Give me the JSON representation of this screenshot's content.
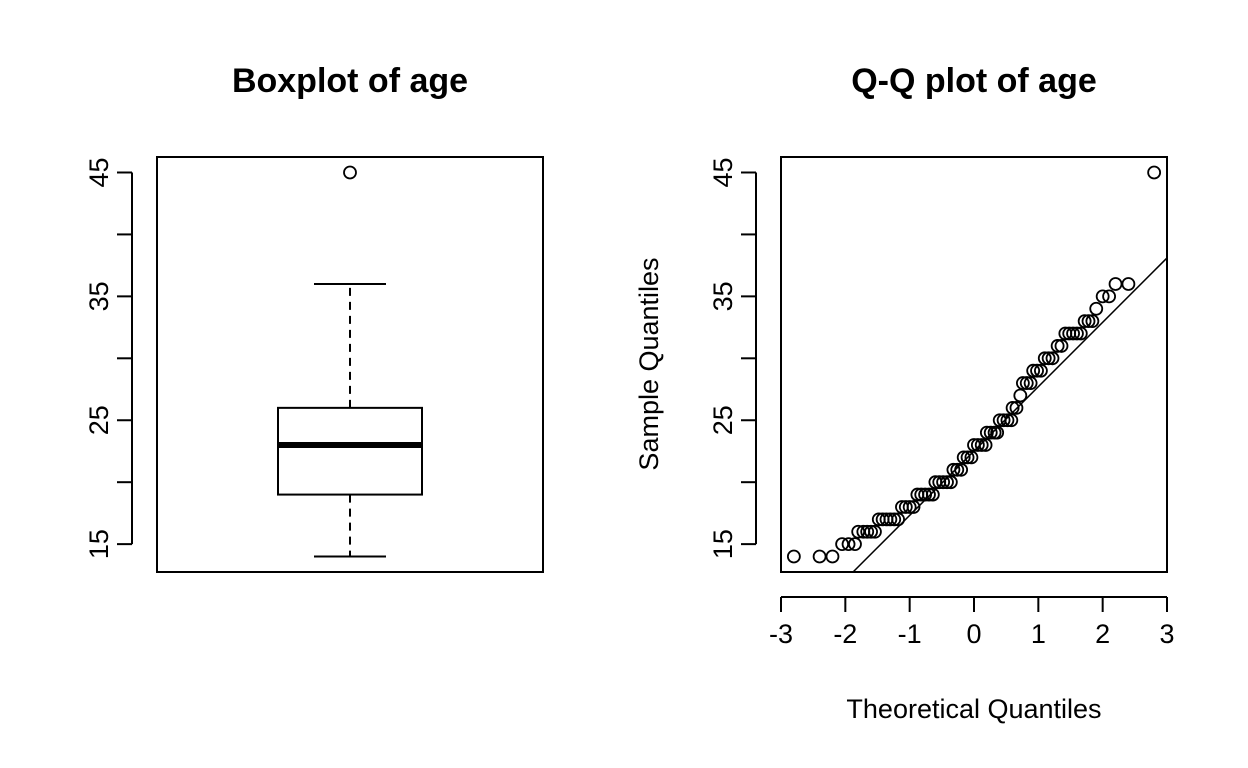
{
  "chart_data": [
    {
      "type": "box",
      "title": "Boxplot of age",
      "xlabel": "",
      "ylabel": "",
      "ylim": [
        12.75,
        46.25
      ],
      "yticks": [
        15,
        20,
        25,
        30,
        35,
        40,
        45
      ],
      "ytick_labels": [
        "15",
        "",
        "25",
        "",
        "35",
        "",
        "45"
      ],
      "box": {
        "whisker_low": 14,
        "q1": 19,
        "median": 23,
        "q3": 26,
        "whisker_high": 36,
        "outliers": [
          45
        ]
      }
    },
    {
      "type": "scatter",
      "title": "Q-Q plot of age",
      "xlabel": "Theoretical Quantiles",
      "ylabel": "Sample Quantiles",
      "xlim": [
        -3,
        3
      ],
      "ylim": [
        12.75,
        46.25
      ],
      "xticks": [
        -3,
        -2,
        -1,
        0,
        1,
        2,
        3
      ],
      "xtick_labels": [
        "-3",
        "-2",
        "-1",
        "0",
        "1",
        "2",
        "3"
      ],
      "yticks": [
        15,
        20,
        25,
        30,
        35,
        40,
        45
      ],
      "ytick_labels": [
        "15",
        "",
        "25",
        "",
        "35",
        "",
        "45"
      ],
      "reference_line": {
        "points": [
          [
            -1.88,
            12.75
          ],
          [
            3.0,
            38.1
          ]
        ]
      },
      "points": [
        [
          -2.8,
          14
        ],
        [
          -2.4,
          14
        ],
        [
          -2.2,
          14
        ],
        [
          -2.05,
          15
        ],
        [
          -1.95,
          15
        ],
        [
          -1.85,
          15
        ],
        [
          -1.8,
          16
        ],
        [
          -1.72,
          16
        ],
        [
          -1.66,
          16
        ],
        [
          -1.6,
          16
        ],
        [
          -1.54,
          16
        ],
        [
          -1.48,
          17
        ],
        [
          -1.42,
          17
        ],
        [
          -1.36,
          17
        ],
        [
          -1.3,
          17
        ],
        [
          -1.24,
          17
        ],
        [
          -1.18,
          17
        ],
        [
          -1.12,
          18
        ],
        [
          -1.06,
          18
        ],
        [
          -1.0,
          18
        ],
        [
          -0.94,
          18
        ],
        [
          -0.88,
          19
        ],
        [
          -0.82,
          19
        ],
        [
          -0.76,
          19
        ],
        [
          -0.7,
          19
        ],
        [
          -0.64,
          19
        ],
        [
          -0.6,
          20
        ],
        [
          -0.54,
          20
        ],
        [
          -0.48,
          20
        ],
        [
          -0.42,
          20
        ],
        [
          -0.36,
          20
        ],
        [
          -0.32,
          21
        ],
        [
          -0.26,
          21
        ],
        [
          -0.2,
          21
        ],
        [
          -0.16,
          22
        ],
        [
          -0.1,
          22
        ],
        [
          -0.04,
          22
        ],
        [
          0.0,
          23
        ],
        [
          0.06,
          23
        ],
        [
          0.12,
          23
        ],
        [
          0.18,
          23
        ],
        [
          0.2,
          24
        ],
        [
          0.26,
          24
        ],
        [
          0.32,
          24
        ],
        [
          0.36,
          24
        ],
        [
          0.4,
          25
        ],
        [
          0.46,
          25
        ],
        [
          0.52,
          25
        ],
        [
          0.58,
          25
        ],
        [
          0.6,
          26
        ],
        [
          0.66,
          26
        ],
        [
          0.72,
          27
        ],
        [
          0.76,
          28
        ],
        [
          0.82,
          28
        ],
        [
          0.88,
          28
        ],
        [
          0.92,
          29
        ],
        [
          0.98,
          29
        ],
        [
          1.04,
          29
        ],
        [
          1.1,
          30
        ],
        [
          1.16,
          30
        ],
        [
          1.22,
          30
        ],
        [
          1.3,
          31
        ],
        [
          1.36,
          31
        ],
        [
          1.42,
          32
        ],
        [
          1.48,
          32
        ],
        [
          1.54,
          32
        ],
        [
          1.6,
          32
        ],
        [
          1.66,
          32
        ],
        [
          1.72,
          33
        ],
        [
          1.78,
          33
        ],
        [
          1.84,
          33
        ],
        [
          1.9,
          34
        ],
        [
          2.0,
          35
        ],
        [
          2.1,
          35
        ],
        [
          2.2,
          36
        ],
        [
          2.4,
          36
        ],
        [
          2.8,
          45
        ]
      ]
    }
  ]
}
